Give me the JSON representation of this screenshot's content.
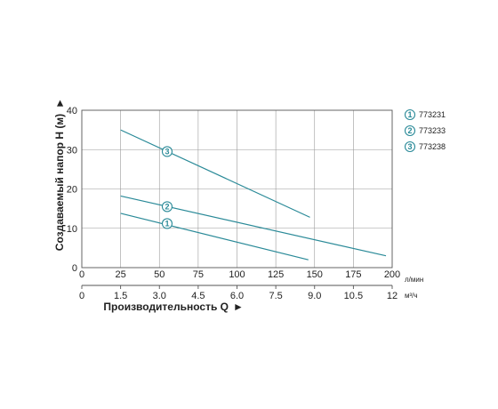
{
  "chart_data": {
    "type": "line",
    "colors": {
      "series": "#2a8a98",
      "grid": "#9a9a9a",
      "frame": "#555555"
    },
    "xlabel": "Производительность Q",
    "ylabel": "Создаваемый напор H (м)",
    "axis_arrow": "►",
    "xlim": [
      0,
      200
    ],
    "ylim": [
      0,
      40
    ],
    "y_ticks": [
      "0",
      "10",
      "20",
      "30",
      "40"
    ],
    "y_tick_values": [
      0,
      10,
      20,
      30,
      40
    ],
    "x_ticks_lpm": [
      "0",
      "25",
      "50",
      "75",
      "100",
      "125",
      "150",
      "175",
      "200"
    ],
    "x_tick_values_lpm": [
      0,
      25,
      50,
      75,
      100,
      125,
      150,
      175,
      200
    ],
    "x_unit_lpm": "л/мин",
    "x_ticks_m3h": [
      "0",
      "1.5",
      "3.0",
      "4.5",
      "6.0",
      "7.5",
      "9.0",
      "10.5",
      "12"
    ],
    "x_tick_values_m3h": [
      0,
      1.5,
      3.0,
      4.5,
      6.0,
      7.5,
      9.0,
      10.5,
      12
    ],
    "x_unit_m3h": "м³/ч",
    "series": [
      {
        "marker": "1",
        "name": "773231",
        "x": [
          25,
          146
        ],
        "y": [
          13.8,
          2.0
        ],
        "marker_x": 55,
        "marker_y": 11.2
      },
      {
        "marker": "2",
        "name": "773233",
        "x": [
          25,
          196
        ],
        "y": [
          18.2,
          3.0
        ],
        "marker_x": 55,
        "marker_y": 15.5
      },
      {
        "marker": "3",
        "name": "773238",
        "x": [
          25,
          147
        ],
        "y": [
          35.0,
          12.8
        ],
        "marker_x": 55,
        "marker_y": 29.5
      }
    ]
  }
}
